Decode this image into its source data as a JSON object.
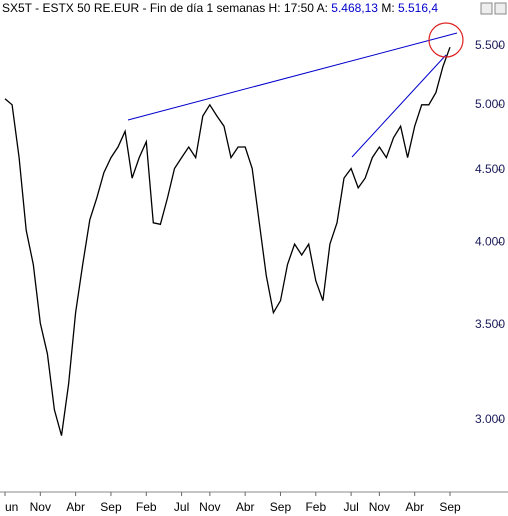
{
  "header": {
    "info": "SX5T - ESTX 50 RE.EUR - Fin de día 1 semanas H: 17:50 A: ",
    "last": "5.468,13",
    "max_label": " M: ",
    "max": "5.516,4"
  },
  "chart_data": {
    "type": "line",
    "log_scale": true,
    "color": "#000000",
    "categories": [
      "un",
      null,
      null,
      null,
      null,
      "Nov",
      null,
      null,
      null,
      null,
      "Abr",
      null,
      null,
      null,
      null,
      "Sep",
      null,
      null,
      null,
      null,
      "Feb",
      null,
      null,
      null,
      null,
      "Jul",
      null,
      null,
      null,
      "Nov",
      null,
      null,
      null,
      null,
      "Abr",
      null,
      null,
      null,
      null,
      "Sep",
      null,
      null,
      null,
      null,
      "Feb",
      null,
      null,
      null,
      null,
      "Jul",
      null,
      null,
      null,
      "Nov",
      null,
      null,
      null,
      null,
      "Abr",
      null,
      null,
      null,
      null,
      "Sep"
    ],
    "values": [
      5050,
      5000,
      4590,
      4080,
      3860,
      3510,
      3340,
      3050,
      2925,
      3180,
      3570,
      3860,
      4150,
      4300,
      4480,
      4590,
      4670,
      4790,
      4440,
      4590,
      4710,
      4130,
      4120,
      4300,
      4510,
      4590,
      4670,
      4590,
      4910,
      5000,
      4910,
      4830,
      4590,
      4670,
      4670,
      4510,
      4130,
      3790,
      3570,
      3640,
      3860,
      3990,
      3920,
      3990,
      3760,
      3640,
      3990,
      4130,
      4440,
      4510,
      4370,
      4440,
      4590,
      4670,
      4590,
      4740,
      4830,
      4590,
      4830,
      5000,
      5000,
      5100,
      5320,
      5490
    ],
    "ylim": [
      2700,
      5700
    ],
    "yticks": [
      {
        "value": 3000,
        "label": "3.000"
      },
      {
        "value": 3500,
        "label": "3.500"
      },
      {
        "value": 4000,
        "label": "4.000"
      },
      {
        "value": 4500,
        "label": "4.500"
      },
      {
        "value": 5000,
        "label": "5.000"
      },
      {
        "value": 5500,
        "label": "5.500"
      }
    ]
  }
}
